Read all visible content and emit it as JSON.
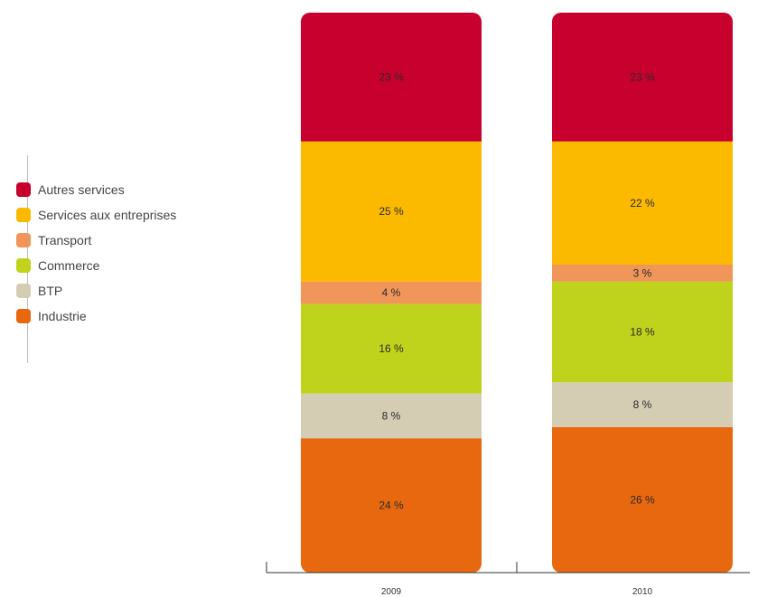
{
  "chart_data": {
    "type": "bar",
    "stacked": true,
    "categories": [
      "2009",
      "2010"
    ],
    "series": [
      {
        "name": "Industrie",
        "values": [
          24,
          26
        ],
        "labels": [
          "24 %",
          "26 %"
        ],
        "color": "#e8680f"
      },
      {
        "name": "BTP",
        "values": [
          8,
          8
        ],
        "labels": [
          "8 %",
          "8 %"
        ],
        "color": "#d4cdb4"
      },
      {
        "name": "Commerce",
        "values": [
          16,
          18
        ],
        "labels": [
          "16 %",
          "18 %"
        ],
        "color": "#bfd21c"
      },
      {
        "name": "Transport",
        "values": [
          4,
          3
        ],
        "labels": [
          "4 %",
          "3 %"
        ],
        "color": "#f0965a"
      },
      {
        "name": "Services aux entreprises",
        "values": [
          25,
          22
        ],
        "labels": [
          "25 %",
          "22 %"
        ],
        "color": "#fbba00"
      },
      {
        "name": "Autres services",
        "values": [
          23,
          23
        ],
        "labels": [
          "23 %",
          "23 %"
        ],
        "color": "#c8002e"
      }
    ],
    "legend_order": [
      "Autres services",
      "Services aux entreprises",
      "Transport",
      "Commerce",
      "BTP",
      "Industrie"
    ],
    "legend_position": "left",
    "grid": false,
    "title": "",
    "xlabel": "",
    "ylabel": ""
  }
}
